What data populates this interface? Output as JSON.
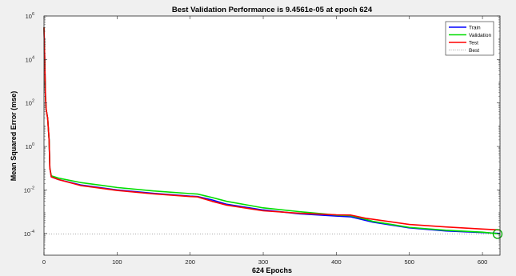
{
  "chart_data": {
    "type": "line",
    "title": "Best Validation Performance is 9.4561e-05 at epoch 624",
    "xlabel": "624 Epochs",
    "ylabel": "Mean Squared Error  (mse)",
    "xlim": [
      0,
      624
    ],
    "ylim": [
      1e-05,
      1000000
    ],
    "yscale": "log",
    "xticks": [
      0,
      100,
      200,
      300,
      400,
      500,
      600
    ],
    "yticks": [
      {
        "value": 0.0001,
        "label": "10-4",
        "base": "10",
        "exp": "-4"
      },
      {
        "value": 0.01,
        "label": "10-2",
        "base": "10",
        "exp": "-2"
      },
      {
        "value": 1,
        "label": "100",
        "base": "10",
        "exp": "0"
      },
      {
        "value": 100,
        "label": "102",
        "base": "10",
        "exp": "2"
      },
      {
        "value": 10000,
        "label": "104",
        "base": "10",
        "exp": "4"
      },
      {
        "value": 1000000,
        "label": "106",
        "base": "10",
        "exp": "6"
      }
    ],
    "grid": false,
    "legend_position": "top-right",
    "series": [
      {
        "name": "Train",
        "color": "#0000ff",
        "x": [
          0,
          1,
          2,
          3,
          5,
          7,
          8,
          10,
          20,
          50,
          100,
          150,
          200,
          210,
          230,
          250,
          300,
          350,
          400,
          420,
          440,
          450,
          500,
          550,
          600,
          624
        ],
        "y": [
          300000,
          10000,
          200,
          50,
          20,
          2,
          0.1,
          0.04,
          0.03,
          0.017,
          0.01,
          0.007,
          0.0052,
          0.005,
          0.0035,
          0.0022,
          0.0012,
          0.0008,
          0.00063,
          0.00058,
          0.0004,
          0.00033,
          0.00018,
          0.00013,
          0.00011,
          0.0001
        ]
      },
      {
        "name": "Validation",
        "color": "#00dd00",
        "x": [
          0,
          1,
          2,
          3,
          5,
          7,
          8,
          10,
          20,
          50,
          100,
          150,
          200,
          210,
          230,
          250,
          300,
          350,
          400,
          420,
          440,
          450,
          500,
          550,
          600,
          624
        ],
        "y": [
          300000,
          10000,
          200,
          50,
          20,
          2,
          0.1,
          0.045,
          0.035,
          0.022,
          0.013,
          0.009,
          0.0068,
          0.0065,
          0.0045,
          0.003,
          0.0015,
          0.001,
          0.0007,
          0.00066,
          0.00045,
          0.00036,
          0.00019,
          0.00014,
          0.000115,
          9.46e-05
        ]
      },
      {
        "name": "Test",
        "color": "#ff0000",
        "x": [
          0,
          1,
          2,
          3,
          5,
          7,
          8,
          10,
          20,
          50,
          100,
          150,
          200,
          210,
          230,
          250,
          300,
          350,
          400,
          420,
          440,
          450,
          500,
          550,
          600,
          624
        ],
        "y": [
          300000,
          10000,
          200,
          50,
          20,
          2,
          0.1,
          0.04,
          0.03,
          0.016,
          0.0095,
          0.0066,
          0.005,
          0.0048,
          0.003,
          0.002,
          0.0011,
          0.00085,
          0.00072,
          0.0007,
          0.0005,
          0.00045,
          0.00026,
          0.0002,
          0.00016,
          0.000145
        ]
      },
      {
        "name": "Best",
        "color": "#7f7f7f",
        "style": "dotted"
      }
    ],
    "best_point": {
      "epoch": 624,
      "value": 9.46e-05,
      "color": "#00aa00"
    }
  }
}
